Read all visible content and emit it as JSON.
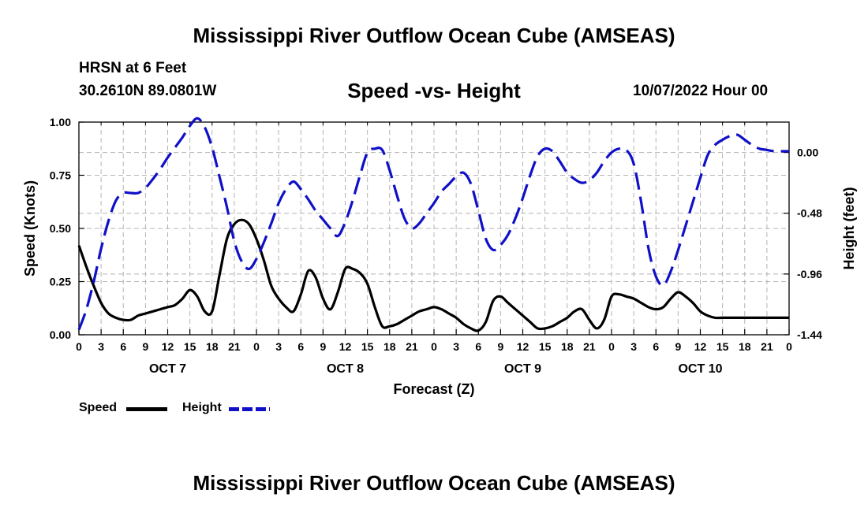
{
  "header": {
    "title": "Mississippi River Outflow Ocean Cube (AMSEAS)",
    "station": "HRSN at 6 Feet",
    "coords": "30.2610N  89.0801W",
    "subtitle": "Speed -vs- Height",
    "run_time": "10/07/2022 Hour 00"
  },
  "footer": {
    "title": "Mississippi River Outflow Ocean Cube (AMSEAS)"
  },
  "colors": {
    "speed": "#000000",
    "height": "#1010c8",
    "grid": "#b4b4b4"
  },
  "legend": {
    "speed_label": "Speed",
    "height_label": "Height"
  },
  "chart_data": {
    "type": "line",
    "title": "Speed -vs- Height",
    "xlabel": "Forecast (Z)",
    "ylabel": "Speed (Knots)",
    "y2label": "Height (feet)",
    "xlim": [
      0,
      96
    ],
    "ylim": [
      0,
      1.0
    ],
    "y2lim": [
      -1.44,
      0.24
    ],
    "grid": true,
    "x_ticks": [
      0,
      3,
      6,
      9,
      12,
      15,
      18,
      21,
      24,
      27,
      30,
      33,
      36,
      39,
      42,
      45,
      48,
      51,
      54,
      57,
      60,
      63,
      66,
      69,
      72,
      75,
      78,
      81,
      84,
      87,
      90,
      93,
      96
    ],
    "x_tick_labels": [
      "0",
      "3",
      "6",
      "9",
      "12",
      "15",
      "18",
      "21",
      "0",
      "3",
      "6",
      "9",
      "12",
      "15",
      "18",
      "21",
      "0",
      "3",
      "6",
      "9",
      "12",
      "15",
      "18",
      "21",
      "0",
      "3",
      "6",
      "9",
      "12",
      "15",
      "18",
      "21",
      "0"
    ],
    "day_labels": [
      {
        "x": 12,
        "label": "OCT 7"
      },
      {
        "x": 36,
        "label": "OCT 8"
      },
      {
        "x": 60,
        "label": "OCT 9"
      },
      {
        "x": 84,
        "label": "OCT 10"
      }
    ],
    "y_ticks": [
      0,
      0.25,
      0.5,
      0.75,
      1.0
    ],
    "y_tick_labels": [
      "0.00",
      "0.25",
      "0.50",
      "0.75",
      "1.00"
    ],
    "y2_ticks": [
      -1.44,
      -0.96,
      -0.48,
      0.0
    ],
    "y2_tick_labels": [
      "-1.44",
      "-0.96",
      "-0.48",
      "0.00"
    ],
    "series": [
      {
        "name": "Speed",
        "axis": "left",
        "style": "solid",
        "x": [
          0,
          1,
          2,
          3,
          4,
          5,
          6,
          7,
          8,
          9,
          10,
          11,
          12,
          13,
          14,
          15,
          16,
          17,
          18,
          19,
          20,
          21,
          22,
          23,
          24,
          25,
          26,
          27,
          28,
          29,
          30,
          31,
          32,
          33,
          34,
          35,
          36,
          37,
          38,
          39,
          40,
          41,
          42,
          43,
          44,
          45,
          46,
          47,
          48,
          49,
          50,
          51,
          52,
          53,
          54,
          55,
          56,
          57,
          58,
          59,
          60,
          61,
          62,
          63,
          64,
          65,
          66,
          67,
          68,
          69,
          70,
          71,
          72,
          73,
          74,
          75,
          76,
          77,
          78,
          79,
          80,
          81,
          82,
          83,
          84,
          85,
          86,
          87,
          88,
          89,
          90,
          91,
          92,
          93,
          94,
          95,
          96
        ],
        "values": [
          0.42,
          0.32,
          0.23,
          0.15,
          0.1,
          0.08,
          0.07,
          0.07,
          0.09,
          0.1,
          0.11,
          0.12,
          0.13,
          0.14,
          0.17,
          0.21,
          0.18,
          0.11,
          0.11,
          0.28,
          0.45,
          0.52,
          0.54,
          0.52,
          0.45,
          0.35,
          0.23,
          0.17,
          0.13,
          0.11,
          0.19,
          0.3,
          0.27,
          0.17,
          0.12,
          0.2,
          0.31,
          0.31,
          0.29,
          0.24,
          0.13,
          0.04,
          0.04,
          0.05,
          0.07,
          0.09,
          0.11,
          0.12,
          0.13,
          0.12,
          0.1,
          0.08,
          0.05,
          0.03,
          0.02,
          0.06,
          0.16,
          0.18,
          0.15,
          0.12,
          0.09,
          0.06,
          0.03,
          0.03,
          0.04,
          0.06,
          0.08,
          0.11,
          0.12,
          0.07,
          0.03,
          0.07,
          0.18,
          0.19,
          0.18,
          0.17,
          0.15,
          0.13,
          0.12,
          0.13,
          0.17,
          0.2,
          0.18,
          0.15,
          0.11,
          0.09,
          0.08,
          0.08,
          0.08,
          0.08,
          0.08,
          0.08,
          0.08,
          0.08,
          0.08,
          0.08,
          0.08
        ]
      },
      {
        "name": "Height",
        "axis": "right",
        "style": "dashed",
        "x": [
          0,
          1,
          2,
          3,
          4,
          5,
          6,
          7,
          8,
          9,
          10,
          11,
          12,
          13,
          14,
          15,
          16,
          17,
          18,
          19,
          20,
          21,
          22,
          23,
          24,
          25,
          26,
          27,
          28,
          29,
          30,
          31,
          32,
          33,
          34,
          35,
          36,
          37,
          38,
          39,
          40,
          41,
          42,
          43,
          44,
          45,
          46,
          47,
          48,
          49,
          50,
          51,
          52,
          53,
          54,
          55,
          56,
          57,
          58,
          59,
          60,
          61,
          62,
          63,
          64,
          65,
          66,
          67,
          68,
          69,
          70,
          71,
          72,
          73,
          74,
          75,
          76,
          77,
          78,
          79,
          80,
          81,
          82,
          83,
          84,
          85,
          86,
          87,
          88,
          89,
          90,
          91,
          92,
          93,
          94,
          95,
          96
        ],
        "values": [
          -1.4,
          -1.24,
          -1.02,
          -0.76,
          -0.54,
          -0.38,
          -0.32,
          -0.32,
          -0.32,
          -0.28,
          -0.21,
          -0.13,
          -0.04,
          0.04,
          0.12,
          0.21,
          0.27,
          0.2,
          0.04,
          -0.19,
          -0.43,
          -0.7,
          -0.86,
          -0.92,
          -0.84,
          -0.71,
          -0.56,
          -0.4,
          -0.29,
          -0.23,
          -0.29,
          -0.37,
          -0.46,
          -0.53,
          -0.6,
          -0.66,
          -0.55,
          -0.38,
          -0.18,
          0.0,
          0.03,
          0.02,
          -0.14,
          -0.34,
          -0.52,
          -0.6,
          -0.56,
          -0.48,
          -0.4,
          -0.31,
          -0.25,
          -0.19,
          -0.16,
          -0.25,
          -0.46,
          -0.68,
          -0.77,
          -0.73,
          -0.65,
          -0.52,
          -0.36,
          -0.18,
          -0.03,
          0.03,
          0.01,
          -0.07,
          -0.16,
          -0.21,
          -0.24,
          -0.22,
          -0.16,
          -0.07,
          0.0,
          0.03,
          0.02,
          -0.09,
          -0.39,
          -0.76,
          -0.98,
          -1.05,
          -0.94,
          -0.77,
          -0.58,
          -0.39,
          -0.2,
          -0.02,
          0.06,
          0.1,
          0.13,
          0.14,
          0.1,
          0.06,
          0.03,
          0.02,
          0.01,
          0.01,
          0.01
        ]
      }
    ]
  }
}
